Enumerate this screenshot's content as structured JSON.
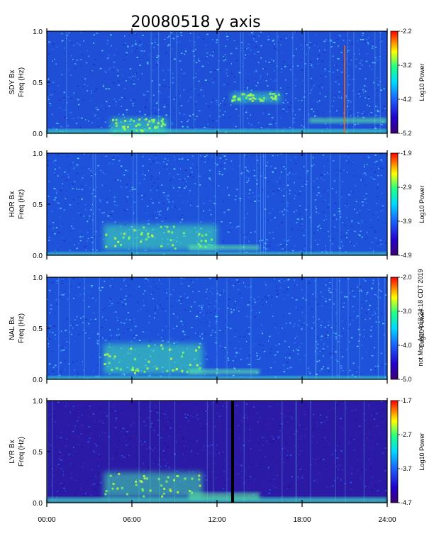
{
  "title": "20080518 y axis",
  "side_note": "not Mon Apr 4 18:24:18 CDT 2019",
  "chart_data": [
    {
      "type": "heatmap",
      "station": "SDY Bx",
      "ylabel": "Freq (Hz)",
      "xlim": [
        "00:00",
        "24:00"
      ],
      "ylim": [
        0.0,
        1.0
      ],
      "yticks": [
        "1.0",
        "0.5",
        "0.0"
      ],
      "xticks": [
        "00:00",
        "06:00",
        "12:00",
        "18:00",
        "24:00"
      ],
      "colorbar": {
        "label": "Log10 Power",
        "ticks": [
          "-2.2",
          "-3.2",
          "-4.2",
          "-5.2"
        ],
        "range": [
          -5.2,
          -2.2
        ]
      },
      "features": [
        {
          "kind": "low-frequency band",
          "start_hour": 0,
          "end_hour": 24,
          "freq_hz": [
            0.0,
            0.04
          ]
        },
        {
          "kind": "patch",
          "start_hour": 4.5,
          "end_hour": 8.5,
          "freq_hz": [
            0.0,
            0.15
          ]
        },
        {
          "kind": "patch",
          "start_hour": 13,
          "end_hour": 16.5,
          "freq_hz": [
            0.3,
            0.4
          ]
        },
        {
          "kind": "band",
          "start_hour": 18.5,
          "end_hour": 24,
          "freq_hz": [
            0.1,
            0.15
          ]
        },
        {
          "kind": "spike",
          "hour": 21.0
        }
      ]
    },
    {
      "type": "heatmap",
      "station": "HOR Bx",
      "ylabel": "Freq (Hz)",
      "xlim": [
        "00:00",
        "24:00"
      ],
      "ylim": [
        0.0,
        1.0
      ],
      "yticks": [
        "1.0",
        "0.5",
        "0.0"
      ],
      "xticks": [
        "00:00",
        "06:00",
        "12:00",
        "18:00",
        "24:00"
      ],
      "colorbar": {
        "label": "Log10 Power",
        "ticks": [
          "-1.9",
          "-2.9",
          "-3.9",
          "-4.9"
        ],
        "range": [
          -4.9,
          -1.9
        ]
      },
      "features": [
        {
          "kind": "low-frequency band",
          "start_hour": 0,
          "end_hour": 24,
          "freq_hz": [
            0.0,
            0.03
          ]
        },
        {
          "kind": "patch",
          "start_hour": 4,
          "end_hour": 12,
          "freq_hz": [
            0.05,
            0.3
          ]
        },
        {
          "kind": "band",
          "start_hour": 10,
          "end_hour": 15,
          "freq_hz": [
            0.05,
            0.1
          ]
        }
      ]
    },
    {
      "type": "heatmap",
      "station": "NAL Bx",
      "ylabel": "Freq (Hz)",
      "xlim": [
        "00:00",
        "24:00"
      ],
      "ylim": [
        0.0,
        1.0
      ],
      "yticks": [
        "1.0",
        "0.5",
        "0.0"
      ],
      "xticks": [
        "00:00",
        "06:00",
        "12:00",
        "18:00",
        "24:00"
      ],
      "colorbar": {
        "label": "Log10 Power",
        "ticks": [
          "-2.0",
          "-3.0",
          "-4.0",
          "-5.0"
        ],
        "range": [
          -5.0,
          -2.0
        ]
      },
      "features": [
        {
          "kind": "low-frequency band",
          "start_hour": 0,
          "end_hour": 24,
          "freq_hz": [
            0.0,
            0.03
          ]
        },
        {
          "kind": "patch",
          "start_hour": 4,
          "end_hour": 11,
          "freq_hz": [
            0.05,
            0.35
          ]
        },
        {
          "kind": "band",
          "start_hour": 10,
          "end_hour": 15,
          "freq_hz": [
            0.05,
            0.1
          ]
        }
      ]
    },
    {
      "type": "heatmap",
      "station": "LYR Bx",
      "ylabel": "Freq (Hz)",
      "xlim": [
        "00:00",
        "24:00"
      ],
      "ylim": [
        0.0,
        1.0
      ],
      "yticks": [
        "1.0",
        "0.5",
        "0.0"
      ],
      "xticks": [
        "00:00",
        "06:00",
        "12:00",
        "18:00",
        "24:00"
      ],
      "colorbar": {
        "label": "Log10 Power",
        "ticks": [
          "-1.7",
          "-2.7",
          "-3.7",
          "-4.7"
        ],
        "range": [
          -4.7,
          -1.7
        ]
      },
      "features": [
        {
          "kind": "low-frequency band",
          "start_hour": 0,
          "end_hour": 24,
          "freq_hz": [
            0.0,
            0.05
          ]
        },
        {
          "kind": "patch",
          "start_hour": 4,
          "end_hour": 11,
          "freq_hz": [
            0.05,
            0.3
          ]
        },
        {
          "kind": "band",
          "start_hour": 10,
          "end_hour": 15,
          "freq_hz": [
            0.03,
            0.1
          ]
        },
        {
          "kind": "data gap",
          "start_hour": 13.0,
          "end_hour": 13.2
        }
      ]
    }
  ]
}
